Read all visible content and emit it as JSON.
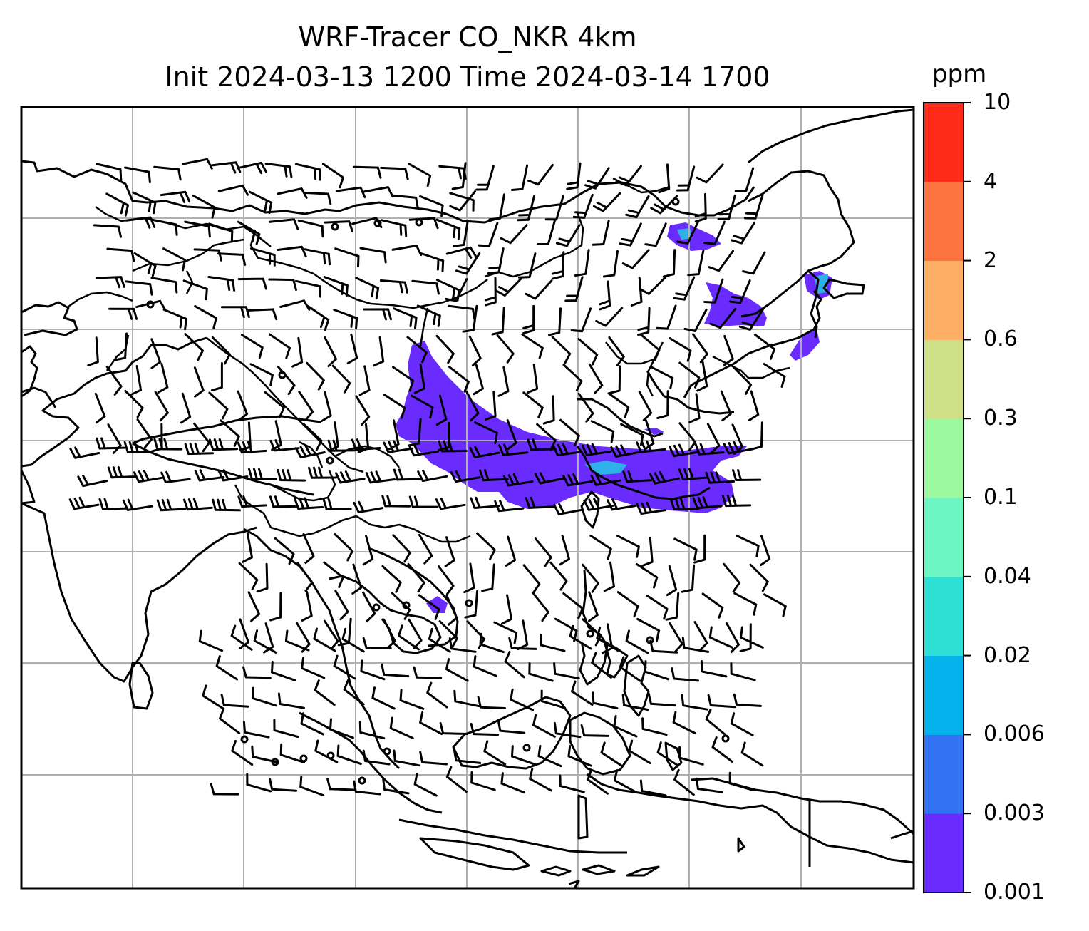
{
  "title": {
    "line1": "WRF-Tracer CO_NKR 4km",
    "line2": "Init 2024-03-13 1200 Time 2024-03-14 1700"
  },
  "colorbar": {
    "unit": "ppm",
    "ticks": [
      "0.001",
      "0.003",
      "0.006",
      "0.02",
      "0.04",
      "0.1",
      "0.3",
      "0.6",
      "2",
      "4",
      "10"
    ],
    "colors": [
      "#6a2bff",
      "#3273f2",
      "#05b2ec",
      "#2edfd5",
      "#6bf6c4",
      "#9cf99e",
      "#cfe088",
      "#fdb064",
      "#fe7440",
      "#ff2a18"
    ]
  },
  "map": {
    "plume_color": "#6a2bff",
    "accent_color": "#2fb0e8"
  }
}
